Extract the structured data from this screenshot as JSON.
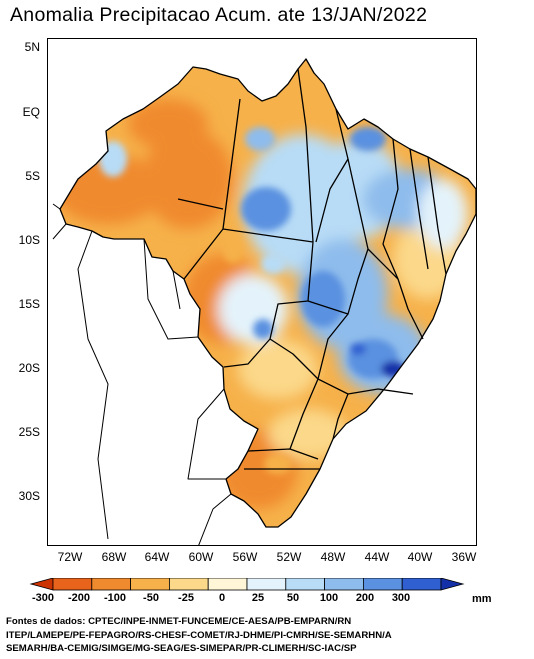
{
  "title": "Anomalia Precipitacao Acum. ate 13/JAN/2022",
  "y_ticks": [
    "5N",
    "EQ",
    "5S",
    "10S",
    "15S",
    "20S",
    "25S",
    "30S"
  ],
  "x_ticks": [
    "72W",
    "68W",
    "64W",
    "60W",
    "56W",
    "52W",
    "48W",
    "44W",
    "40W",
    "36W"
  ],
  "colorbar": {
    "labels": [
      "-300",
      "-200",
      "-100",
      "-50",
      "-25",
      "0",
      "25",
      "50",
      "100",
      "200",
      "300"
    ],
    "unit": "mm",
    "colors": [
      "#cc3300",
      "#e8641c",
      "#f08a2e",
      "#f6b14a",
      "#fbd88a",
      "#fff6d8",
      "#e4f3fb",
      "#b8dcf6",
      "#8ebcec",
      "#5a91e0",
      "#2f5fd0",
      "#1430a8"
    ]
  },
  "sources": [
    "Fontes de dados: CPTEC/INPE-INMET-FUNCEME/CE-AESA/PB-EMPARN/RN",
    "ITEP/LAMEPE/PE-FEPAGRO/RS-CHESF-COMET/RJ-DHME/PI-CMRH/SE-SEMARHN/A",
    "SEMARH/BA-CEMIG/SIMGE/MG-SEAG/ES-SIMEPAR/PR-CLIMERH/SC-IAC/SP"
  ]
}
